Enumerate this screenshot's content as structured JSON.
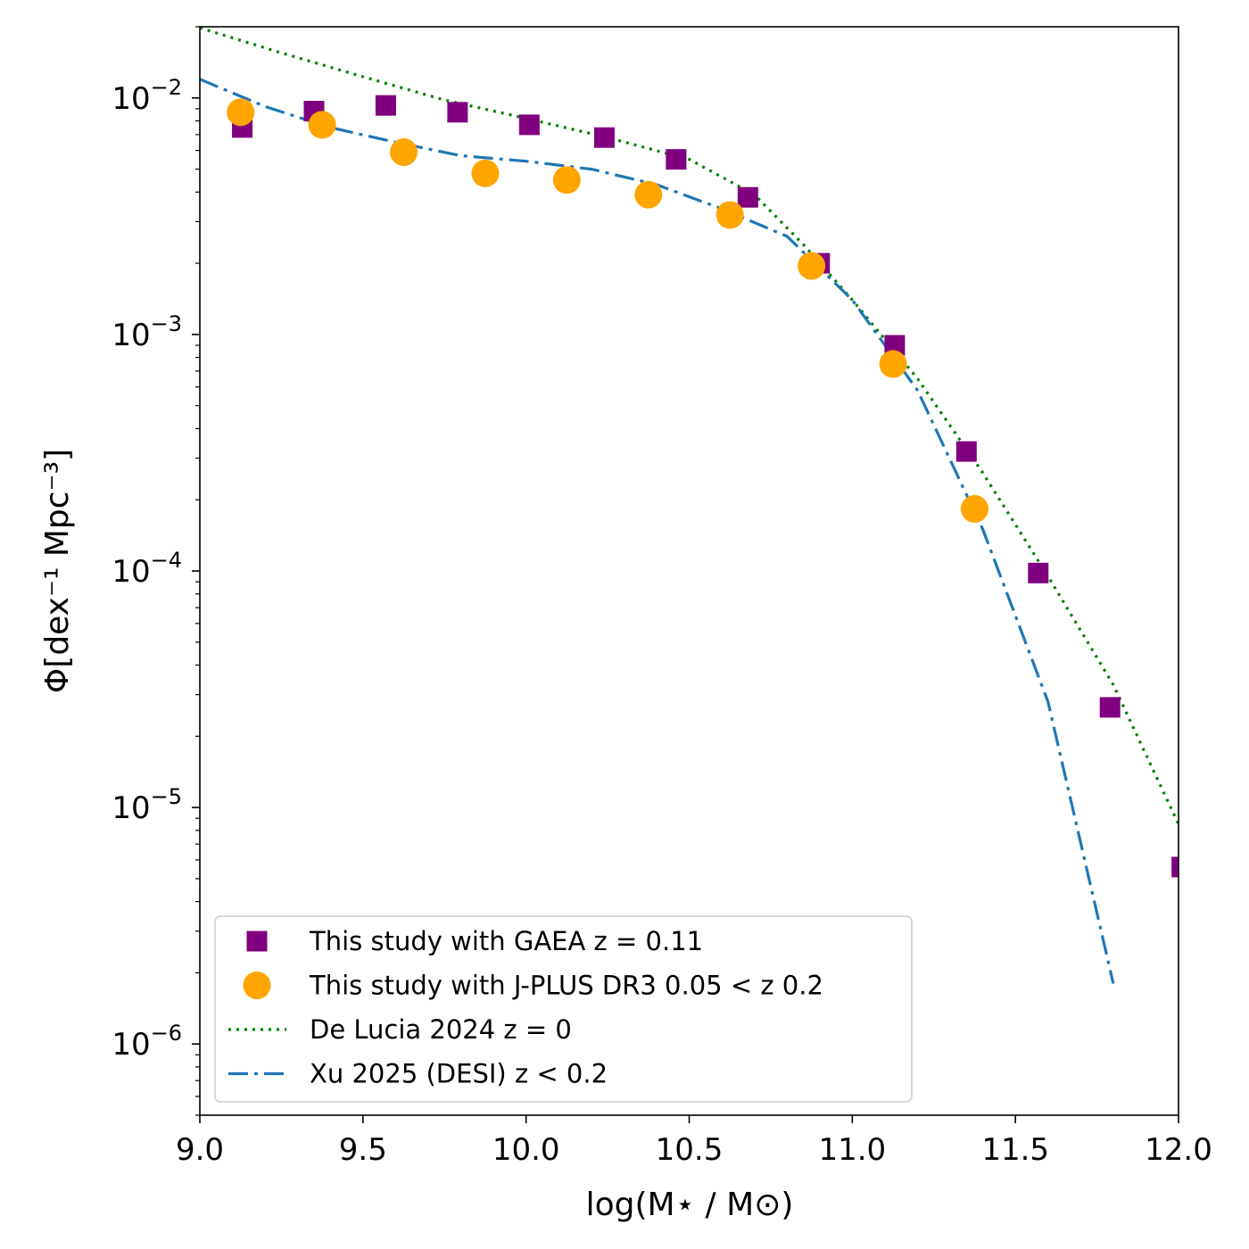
{
  "chart_data": {
    "type": "scatter",
    "xlabel": "log(M⋆ / M⊙)",
    "ylabel": "Φ[dex⁻¹ Mpc⁻³]",
    "xlim": [
      9.0,
      12.0
    ],
    "ylim": [
      5e-07,
      0.02
    ],
    "yscale": "log",
    "x_ticks": [
      9.0,
      9.5,
      10.0,
      10.5,
      11.0,
      11.5,
      12.0
    ],
    "x_tick_labels": [
      "9.0",
      "9.5",
      "10.0",
      "10.5",
      "11.0",
      "11.5",
      "12.0"
    ],
    "y_ticks": [
      1e-06,
      1e-05,
      0.0001,
      0.001,
      0.01
    ],
    "y_tick_bases": [
      "10",
      "10",
      "10",
      "10",
      "10"
    ],
    "y_tick_exps": [
      "−6",
      "−5",
      "−4",
      "−3",
      "−2"
    ],
    "grid": false,
    "legend_position": "lower-left",
    "series": [
      {
        "name": "This study with GAEA z = 0.11",
        "style": "marker",
        "marker": "square",
        "color": "#800080",
        "x": [
          9.13,
          9.35,
          9.57,
          9.79,
          10.01,
          10.24,
          10.46,
          10.68,
          10.9,
          11.13,
          11.35,
          11.57,
          11.79,
          12.01
        ],
        "y": [
          0.0075,
          0.0088,
          0.0093,
          0.0087,
          0.0077,
          0.0068,
          0.0055,
          0.0038,
          0.002,
          0.0009,
          0.00032,
          9.8e-05,
          2.65e-05,
          5.6e-06
        ]
      },
      {
        "name": "This study with J-PLUS DR3 0.05 < z 0.2",
        "style": "marker",
        "marker": "circle",
        "color": "#ffa500",
        "x": [
          9.125,
          9.375,
          9.625,
          9.875,
          10.125,
          10.375,
          10.625,
          10.875,
          11.125,
          11.375
        ],
        "y": [
          0.0087,
          0.0077,
          0.0059,
          0.0048,
          0.0045,
          0.0039,
          0.0032,
          0.00195,
          0.00075,
          0.000183
        ]
      },
      {
        "name": "De Lucia 2024 z = 0",
        "style": "dotted",
        "color": "#008000",
        "x": [
          9.0,
          9.25,
          9.5,
          9.75,
          10.0,
          10.25,
          10.5,
          10.7,
          10.85,
          11.0,
          11.2,
          11.4,
          11.6,
          11.8,
          12.0
        ],
        "y": [
          0.0198,
          0.0155,
          0.0123,
          0.0098,
          0.0082,
          0.0068,
          0.0055,
          0.0039,
          0.0024,
          0.0014,
          0.00065,
          0.00026,
          9.5e-05,
          3.3e-05,
          8.5e-06
        ]
      },
      {
        "name": " Xu 2025 (DESI) z < 0.2",
        "style": "dashdot",
        "color": "#1f77b4",
        "x": [
          9.0,
          9.2,
          9.4,
          9.6,
          9.8,
          10.0,
          10.2,
          10.4,
          10.6,
          10.8,
          11.0,
          11.2,
          11.4,
          11.6,
          11.8
        ],
        "y": [
          0.012,
          0.0092,
          0.0075,
          0.0065,
          0.0057,
          0.0054,
          0.005,
          0.0043,
          0.0034,
          0.0026,
          0.0014,
          0.00058,
          0.00015,
          2.8e-05,
          1.8e-06
        ]
      }
    ]
  }
}
